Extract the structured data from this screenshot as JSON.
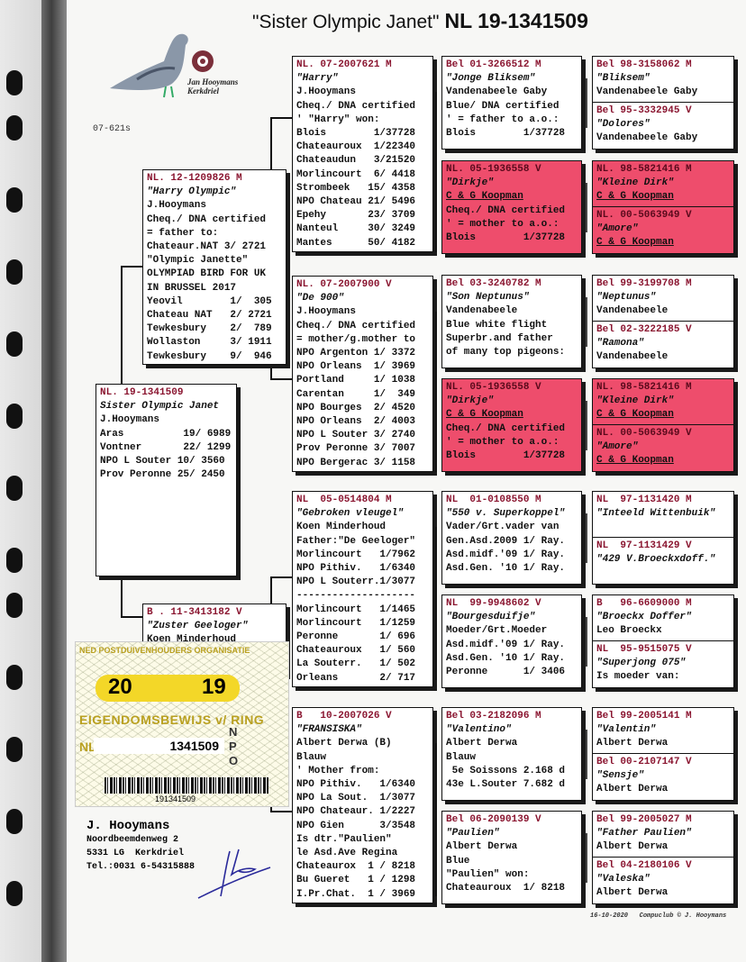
{
  "title": {
    "name": "\"Sister Olympic Janet\"",
    "ring": "NL  19-1341509"
  },
  "logo_text": "Jan Hooymans Kerkdriel",
  "code": "07-621s",
  "colors": {
    "ring_text": "#8a1530",
    "highlight": "#ee4d6c",
    "ring_card_yellow": "#f3d728"
  },
  "subject": {
    "ring": "NL. 19-1341509",
    "name": "Sister Olympic Janet",
    "lines": [
      "J.Hooymans",
      "Aras          19/ 6989",
      "Vontner       22/ 1299",
      "NPO L Souter 10/ 3560",
      "Prov Peronne 25/ 2450"
    ]
  },
  "sire": {
    "ring": "NL. 12-1209826 M",
    "name": "\"Harry Olympic\"",
    "lines": [
      "J.Hooymans",
      "Cheq./ DNA certified",
      "= father to:",
      "Chateaur.NAT 3/ 2721",
      "\"Olympic Janette\"",
      "OLYMPIAD BIRD FOR UK",
      "IN BRUSSEL 2017",
      "Yeovil        1/  305",
      "Chateau NAT   2/ 2721",
      "Tewkesbury    2/  789",
      "Wollaston     3/ 1911",
      "Tewkesbury    9/  946"
    ]
  },
  "dam": {
    "ring": "B . 11-3413182 V",
    "name": "\"Zuster Geeloger\"",
    "lines": [
      "Koen Minderhoud"
    ]
  },
  "gen3": [
    {
      "ring": "NL. 07-2007621 M",
      "name": "\"Harry\"",
      "lines": [
        "J.Hooymans",
        "Cheq./ DNA certified",
        "' \"Harry\" won:",
        "Blois        1/37728",
        "Chateauroux  1/22340",
        "Chateaudun   3/21520",
        "Morlincourt  6/ 4418",
        "Strombeek   15/ 4358",
        "NPO Chateau 21/ 5496",
        "Epehy       23/ 3709",
        "Nanteul     30/ 3249",
        "Mantes      50/ 4182"
      ]
    },
    {
      "ring": "NL. 07-2007900 V",
      "name": "\"De 900\"",
      "lines": [
        "J.Hooymans",
        "Cheq./ DNA certified",
        "= mother/g.mother to",
        "NPO Argenton 1/ 3372",
        "NPO Orleans  1/ 3969",
        "Portland     1/ 1038",
        "Carentan     1/  349",
        "NPO Bourges  2/ 4520",
        "NPO Orleans  2/ 4003",
        "NPO L Souter 3/ 2740",
        "Prov Peronne 3/ 7007",
        "NPO Bergerac 3/ 1158"
      ]
    },
    {
      "ring": "NL  05-0514804 M",
      "name": "\"Gebroken vleugel\"",
      "lines": [
        "Koen Minderhoud",
        "Father:\"De Geeloger\"",
        "Morlincourt   1/7962",
        "NPO Pithiv.   1/6340",
        "NPO L Souterr.1/3077",
        "--------------------",
        "Morlincourt   1/1465",
        "Morlincourt   1/1259",
        "Peronne       1/ 696",
        "Chateauroux   1/ 560",
        "La Souterr.   1/ 502",
        "Orleans       2/ 717"
      ]
    },
    {
      "ring": "B   10-2007026 V",
      "name": "\"FRANSISKA\"",
      "lines": [
        "Albert Derwa (B)",
        "Blauw",
        "' Mother from:",
        "NPO Pithiv.   1/6340",
        "NPO La Sout.  1/3077",
        "NPO Chateaur. 1/2227",
        "NPO Gien      3/3548",
        "Is dtr.\"Paulien\"",
        "le Asd.Ave Regina",
        "Chateaurox  1 / 8218",
        "Bu Gueret   1 / 1298",
        "I.Pr.Chat.  1 / 3969"
      ]
    }
  ],
  "gen4": [
    {
      "ring": "Bel 01-3266512 M",
      "name": "\"Jonge Bliksem\"",
      "lines": [
        "Vandenabeele Gaby",
        "Blue/ DNA certified",
        "' = father to a.o.:",
        "Blois        1/37728"
      ],
      "highlight": false
    },
    {
      "ring": "NL. 05-1936558 V",
      "name": "\"Dirkje\"",
      "breeder": "C & G Koopman",
      "lines": [
        "Cheq./ DNA certified",
        "' = mother to a.o.:",
        "Blois        1/37728"
      ],
      "highlight": true
    },
    {
      "ring": "Bel 03-3240782 M",
      "name": "\"Son Neptunus\"",
      "lines": [
        "Vandenabeele",
        "Blue white flight",
        "Superbr.and father",
        "of many top pigeons:"
      ],
      "highlight": false
    },
    {
      "ring": "NL. 05-1936558 V",
      "name": "\"Dirkje\"",
      "breeder": "C & G Koopman",
      "lines": [
        "Cheq./ DNA certified",
        "' = mother to a.o.:",
        "Blois        1/37728"
      ],
      "highlight": true
    },
    {
      "ring": "NL  01-0108550 M",
      "name": "\"550 v. Superkoppel\"",
      "lines": [
        "Vader/Grt.vader van",
        "Gen.Asd.2009 1/ Ray.",
        "Asd.midf.'09 1/ Ray.",
        "Asd.Gen. '10 1/ Ray."
      ],
      "highlight": false
    },
    {
      "ring": "NL  99-9948602 V",
      "name": "\"Bourgesduifje\"",
      "lines": [
        "Moeder/Grt.Moeder",
        "Asd.midf.'09 1/ Ray.",
        "Asd.Gen. '10 1/ Ray.",
        "Peronne      1/ 3406"
      ],
      "highlight": false
    },
    {
      "ring": "Bel 03-2182096 M",
      "name": "\"Valentino\"",
      "lines": [
        "Albert Derwa",
        "Blauw",
        " 5e Soissons 2.168 d",
        "43e L.Souter 7.682 d"
      ],
      "highlight": false
    },
    {
      "ring": "Bel 06-2090139 V",
      "name": "\"Paulien\"",
      "lines": [
        "Albert Derwa",
        "Blue",
        "\"Paulien\" won:",
        "Chateauroux  1/ 8218"
      ],
      "highlight": false
    }
  ],
  "gen5": [
    {
      "ring": "Bel 98-3158062 M",
      "name": "\"Bliksem\"",
      "lines": [
        "Vandenabeele Gaby"
      ],
      "highlight": false
    },
    {
      "ring": "Bel 95-3332945 V",
      "name": "\"Dolores\"",
      "lines": [
        "Vandenabeele Gaby"
      ],
      "highlight": false
    },
    {
      "ring": "NL. 98-5821416 M",
      "name": "\"Kleine Dirk\"",
      "breeder": "C & G Koopman",
      "lines": [],
      "highlight": true
    },
    {
      "ring": "NL. 00-5063949 V",
      "name": "\"Amore\"",
      "breeder": "C & G Koopman",
      "lines": [],
      "highlight": true
    },
    {
      "ring": "Bel 99-3199708 M",
      "name": "\"Neptunus\"",
      "lines": [
        "Vandenabeele"
      ],
      "highlight": false
    },
    {
      "ring": "Bel 02-3222185 V",
      "name": "\"Ramona\"",
      "lines": [
        "Vandenabeele"
      ],
      "highlight": false
    },
    {
      "ring": "NL. 98-5821416 M",
      "name": "\"Kleine Dirk\"",
      "breeder": "C & G Koopman",
      "lines": [],
      "highlight": true
    },
    {
      "ring": "NL. 00-5063949 V",
      "name": "\"Amore\"",
      "breeder": "C & G Koopman",
      "lines": [],
      "highlight": true
    },
    {
      "ring": "NL  97-1131420 M",
      "name": "\"Inteeld Wittenbuik\"",
      "lines": [],
      "highlight": false
    },
    {
      "ring": "NL  97-1131429 V",
      "name": "\"429 V.Broeckxdoff.\"",
      "lines": [],
      "highlight": false
    },
    {
      "ring": "B   96-6609000 M",
      "name": "\"Broeckx Doffer\"",
      "lines": [
        "Leo Broeckx"
      ],
      "highlight": false
    },
    {
      "ring": "NL  95-9515075 V",
      "name": "\"Superjong 075\"",
      "lines": [
        "Is moeder van:"
      ],
      "highlight": false
    },
    {
      "ring": "Bel 99-2005141 M",
      "name": "\"Valentin\"",
      "lines": [
        "Albert Derwa"
      ],
      "highlight": false
    },
    {
      "ring": "Bel 00-2107147 V",
      "name": "\"Sensje\"",
      "lines": [
        "Albert Derwa"
      ],
      "highlight": false
    },
    {
      "ring": "Bel 99-2005027 M",
      "name": "\"Father Paulien\"",
      "lines": [
        "Albert Derwa"
      ],
      "highlight": false
    },
    {
      "ring": "Bel 04-2180106 V",
      "name": "\"Valeska\"",
      "lines": [
        "Albert Derwa"
      ],
      "highlight": false
    }
  ],
  "ring_card": {
    "header": "NED POSTDUIVENHOUDERS ORGANISATIE",
    "year_left": "20",
    "year_right": "19",
    "title": "EIGENDOMSBEWIJS v/ RING",
    "country": "NL",
    "number": "1341509",
    "side_letters": [
      "N",
      "P",
      "O"
    ],
    "barcode": "191341509"
  },
  "owner": {
    "name": "J. Hooymans",
    "street": "Noordbeemdenweg 2",
    "city": "5331 LG  Kerkdriel",
    "phone": "Tel.:0031 6-54315888"
  },
  "footer": {
    "date": "16-10-2020",
    "credit": "Compuclub © J. Hooymans"
  }
}
